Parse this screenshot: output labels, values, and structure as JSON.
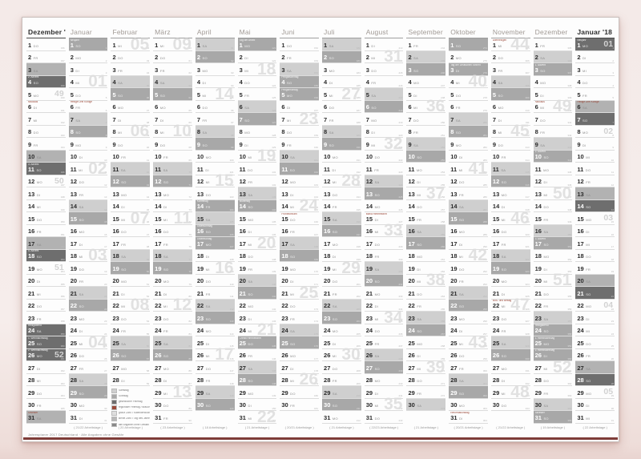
{
  "calendar": {
    "year": "2017",
    "weekday_abbr": [
      "MO",
      "DI",
      "MI",
      "DO",
      "FR",
      "SA",
      "SO"
    ],
    "months": [
      {
        "key": "dez16",
        "name": "Dezember '16",
        "outer": true,
        "days": 31,
        "start": 3,
        "doy": 336,
        "workdays": "",
        "weeks": [
          [
            5,
            "49"
          ],
          [
            12,
            "50"
          ],
          [
            19,
            "51"
          ],
          [
            26,
            "52"
          ]
        ],
        "specials": {
          "4": {
            "t": "2. Advent",
            "k": "hol"
          },
          "6": {
            "t": "Nikolaus",
            "k": "note"
          },
          "11": {
            "t": "3. Advent",
            "k": "hol"
          },
          "18": {
            "t": "4. Advent",
            "k": "hol"
          },
          "24": {
            "t": "Heiligabend",
            "k": "hol"
          },
          "25": {
            "t": "1. Weihnachtstag",
            "k": "hol"
          },
          "26": {
            "t": "2. Weihnachtstag",
            "k": "hol"
          },
          "31": {
            "t": "Silvester",
            "k": "note"
          }
        }
      },
      {
        "key": "jan",
        "name": "Januar",
        "outer": false,
        "days": 31,
        "start": 6,
        "doy": 1,
        "workdays": "( 21/22 Arbeitstage )",
        "weeks": [
          [
            4,
            "01"
          ],
          [
            11,
            "02"
          ],
          [
            18,
            "03"
          ],
          [
            25,
            "04"
          ]
        ],
        "specials": {
          "1": {
            "t": "Neujahr",
            "k": "hol"
          },
          "6": {
            "t": "Heilige Drei Könige",
            "k": "note"
          }
        }
      },
      {
        "key": "feb",
        "name": "Februar",
        "outer": false,
        "days": 28,
        "start": 2,
        "doy": 32,
        "workdays": "( 20 Arbeitstage )",
        "legend": true,
        "weeks": [
          [
            1,
            "05"
          ],
          [
            8,
            "06"
          ],
          [
            15,
            "07"
          ],
          [
            22,
            "08"
          ]
        ],
        "specials": {}
      },
      {
        "key": "mar",
        "name": "März",
        "outer": false,
        "days": 31,
        "start": 2,
        "doy": 60,
        "workdays": "( 23 Arbeitstage )",
        "weeks": [
          [
            1,
            "09"
          ],
          [
            8,
            "10"
          ],
          [
            15,
            "11"
          ],
          [
            22,
            "12"
          ],
          [
            29,
            "13"
          ]
        ],
        "specials": {}
      },
      {
        "key": "apr",
        "name": "April",
        "outer": false,
        "days": 30,
        "start": 5,
        "doy": 91,
        "workdays": "( 18 Arbeitstage )",
        "weeks": [
          [
            5,
            "14"
          ],
          [
            12,
            "15"
          ],
          [
            19,
            "16"
          ],
          [
            26,
            "17"
          ]
        ],
        "specials": {
          "14": {
            "t": "Karfreitag",
            "k": "hol"
          },
          "16": {
            "t": "Ostersonntag",
            "k": "hol"
          },
          "17": {
            "t": "Ostermontag",
            "k": "hol"
          }
        }
      },
      {
        "key": "mai",
        "name": "Mai",
        "outer": false,
        "days": 31,
        "start": 0,
        "doy": 121,
        "workdays": "( 21 Arbeitstage )",
        "weeks": [
          [
            3,
            "18"
          ],
          [
            10,
            "19"
          ],
          [
            17,
            "20"
          ],
          [
            24,
            "21"
          ],
          [
            31,
            "22"
          ]
        ],
        "specials": {
          "1": {
            "t": "Tag der Arbeit",
            "k": "hol"
          },
          "14": {
            "t": "Muttertag",
            "k": "hol"
          },
          "25": {
            "t": "Christi Himmelfahrt",
            "k": "hol"
          }
        }
      },
      {
        "key": "jun",
        "name": "Juni",
        "outer": false,
        "days": 30,
        "start": 3,
        "doy": 152,
        "workdays": "( 20/21 Arbeitstage )",
        "weeks": [
          [
            7,
            "23"
          ],
          [
            14,
            "24"
          ],
          [
            21,
            "25"
          ],
          [
            28,
            "26"
          ]
        ],
        "specials": {
          "4": {
            "t": "Pfingstsonntag",
            "k": "hol"
          },
          "5": {
            "t": "Pfingstmontag",
            "k": "hol"
          },
          "15": {
            "t": "Fronleichnam",
            "k": "note"
          }
        }
      },
      {
        "key": "jul",
        "name": "Juli",
        "outer": false,
        "days": 31,
        "start": 5,
        "doy": 182,
        "workdays": "( 21 Arbeitstage )",
        "weeks": [
          [
            5,
            "27"
          ],
          [
            12,
            "28"
          ],
          [
            19,
            "29"
          ],
          [
            26,
            "30"
          ]
        ],
        "specials": {}
      },
      {
        "key": "aug",
        "name": "August",
        "outer": false,
        "days": 31,
        "start": 1,
        "doy": 213,
        "workdays": "( 22/23 Arbeitstage )",
        "weeks": [
          [
            2,
            "31"
          ],
          [
            9,
            "32"
          ],
          [
            16,
            "33"
          ],
          [
            23,
            "34"
          ],
          [
            30,
            "35"
          ]
        ],
        "specials": {
          "15": {
            "t": "Mariä Himmelfahrt",
            "k": "note"
          }
        }
      },
      {
        "key": "sep",
        "name": "September",
        "outer": false,
        "days": 30,
        "start": 4,
        "doy": 244,
        "workdays": "( 21 Arbeitstage )",
        "weeks": [
          [
            6,
            "36"
          ],
          [
            13,
            "37"
          ],
          [
            20,
            "38"
          ],
          [
            27,
            "39"
          ]
        ],
        "specials": {}
      },
      {
        "key": "okt",
        "name": "Oktober",
        "outer": false,
        "days": 31,
        "start": 6,
        "doy": 274,
        "workdays": "( 20/21 Arbeitstage )",
        "weeks": [
          [
            4,
            "40"
          ],
          [
            11,
            "41"
          ],
          [
            18,
            "42"
          ],
          [
            25,
            "43"
          ]
        ],
        "specials": {
          "3": {
            "t": "Tag der Deutschen Einheit",
            "k": "hol"
          },
          "31": {
            "t": "Reformationstag",
            "k": "note"
          }
        }
      },
      {
        "key": "nov",
        "name": "November",
        "outer": false,
        "days": 30,
        "start": 2,
        "doy": 305,
        "workdays": "( 21/22 Arbeitstage )",
        "weeks": [
          [
            1,
            "44"
          ],
          [
            8,
            "45"
          ],
          [
            15,
            "46"
          ],
          [
            22,
            "47"
          ],
          [
            29,
            "48"
          ]
        ],
        "specials": {
          "1": {
            "t": "Allerheiligen",
            "k": "note"
          },
          "22": {
            "t": "Buß- und Bettag",
            "k": "note"
          }
        }
      },
      {
        "key": "dez",
        "name": "Dezember",
        "outer": false,
        "days": 31,
        "start": 4,
        "doy": 335,
        "workdays": "( 19 Arbeitstage )",
        "weeks": [
          [
            6,
            "49"
          ],
          [
            13,
            "50"
          ],
          [
            20,
            "51"
          ],
          [
            27,
            "52"
          ]
        ],
        "specials": {
          "3": {
            "t": "1. Advent",
            "k": "hol"
          },
          "6": {
            "t": "Nikolaus",
            "k": "note"
          },
          "10": {
            "t": "2. Advent",
            "k": "hol"
          },
          "17": {
            "t": "3. Advent",
            "k": "hol"
          },
          "24": {
            "t": "Heiligabend",
            "k": "hol"
          },
          "25": {
            "t": "1. Weihnachtstag",
            "k": "hol"
          },
          "26": {
            "t": "2. Weihnachtstag",
            "k": "hol"
          },
          "31": {
            "t": "Silvester",
            "k": "hol"
          }
        }
      },
      {
        "key": "jan18",
        "name": "Januar '18",
        "outer": true,
        "days": 31,
        "start": 0,
        "doy": 1,
        "workdays": "( 22 Arbeitstage )",
        "weeks": [
          [
            1,
            "01"
          ],
          [
            8,
            "02"
          ],
          [
            15,
            "03"
          ],
          [
            22,
            "04"
          ],
          [
            29,
            "05"
          ]
        ],
        "specials": {
          "1": {
            "t": "Neujahr",
            "k": "hol"
          },
          "6": {
            "t": "Heilige Drei Könige",
            "k": "note"
          }
        }
      }
    ]
  },
  "legend": {
    "items": [
      {
        "chip": "#cfcfcf",
        "text": "Samstag"
      },
      {
        "chip": "#a8a8a8",
        "text": "Sonntag"
      },
      {
        "chip": "#6e6e6e",
        "text": "gesetzlicher Feiertag"
      },
      {
        "chip": "#9c4a3a",
        "text": "regionaler Feiertag / Brauchtumstag"
      },
      {
        "chip": "#dedede",
        "text": "große Zahl = Kalenderwoche"
      },
      {
        "chip": "#b8b8b8",
        "text": "kleine Zahl = Tag des Jahres"
      },
      {
        "chip": "#888888",
        "text": "alle Angaben ohne Gewähr"
      }
    ]
  },
  "footer": {
    "credit": "Jahresplaner 2017 Deutschland · Alle Angaben ohne Gewähr"
  },
  "colors": {
    "saturday_inner": "#cfcfcf",
    "sunday_holiday_inner": "#a8a8a8",
    "saturday_outer": "#b2b2b2",
    "sunday_holiday_outer": "#6e6e6e",
    "week_number": "#dedede",
    "holiday_note_label": "#9c4a3a",
    "bottom_stripe": "#7e3c38"
  }
}
